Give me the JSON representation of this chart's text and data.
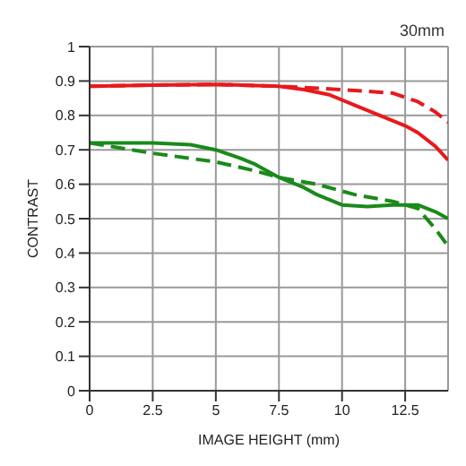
{
  "chart_data": {
    "type": "line",
    "title": "30mm",
    "xlabel": "IMAGE HEIGHT (mm)",
    "ylabel": "CONTRAST",
    "xlim": [
      0,
      14.2
    ],
    "ylim": [
      0,
      1
    ],
    "xticks": [
      0,
      2.5,
      5,
      7.5,
      10,
      12.5
    ],
    "yticks": [
      0,
      0.1,
      0.2,
      0.3,
      0.4,
      0.5,
      0.6,
      0.7,
      0.8,
      0.9,
      1
    ],
    "grid": true,
    "marker": "none",
    "series": [
      {
        "color": "#e8191c",
        "line_style": "solid",
        "x": [
          0,
          2.5,
          5,
          7.5,
          8.5,
          9.5,
          10.5,
          11.5,
          12.5,
          13,
          13.7,
          14.2
        ],
        "values": [
          0.885,
          0.888,
          0.89,
          0.885,
          0.875,
          0.86,
          0.83,
          0.8,
          0.77,
          0.75,
          0.71,
          0.67
        ]
      },
      {
        "color": "#e8191c",
        "line_style": "dashed",
        "x": [
          0,
          2.5,
          5,
          7.5,
          10,
          12,
          13,
          13.7,
          14.2
        ],
        "values": [
          0.885,
          0.888,
          0.89,
          0.885,
          0.875,
          0.865,
          0.84,
          0.81,
          0.78
        ]
      },
      {
        "color": "#1a8a1a",
        "line_style": "solid",
        "x": [
          0,
          2.5,
          4,
          5,
          6,
          6.5,
          7.5,
          8.5,
          9,
          10,
          11,
          12,
          13,
          13.7,
          14.2
        ],
        "values": [
          0.72,
          0.72,
          0.715,
          0.7,
          0.675,
          0.66,
          0.62,
          0.59,
          0.57,
          0.54,
          0.535,
          0.54,
          0.54,
          0.52,
          0.5
        ]
      },
      {
        "color": "#1a8a1a",
        "line_style": "dashed",
        "x": [
          0,
          2.5,
          5,
          6.5,
          7.5,
          9,
          10.5,
          12,
          13,
          13.7,
          14.2
        ],
        "values": [
          0.72,
          0.69,
          0.665,
          0.64,
          0.62,
          0.6,
          0.57,
          0.55,
          0.53,
          0.47,
          0.42
        ]
      }
    ]
  }
}
